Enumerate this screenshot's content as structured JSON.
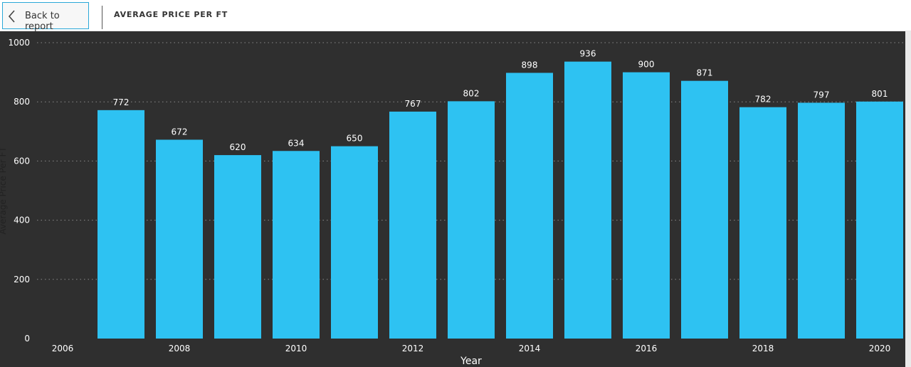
{
  "header": {
    "back_label": "Back to report",
    "page_title": "AVERAGE PRICE PER FT"
  },
  "colors": {
    "bar": "#2ec2f2",
    "background": "#2f2f2f",
    "gridline": "#8a8a8a"
  },
  "chart_data": {
    "type": "bar",
    "categories": [
      2007,
      2008,
      2009,
      2010,
      2011,
      2012,
      2013,
      2014,
      2015,
      2016,
      2017,
      2018,
      2019,
      2020
    ],
    "values": [
      772,
      672,
      620,
      634,
      650,
      767,
      802,
      898,
      936,
      900,
      871,
      782,
      797,
      801
    ],
    "x_ticks": [
      "2006",
      "2008",
      "2010",
      "2012",
      "2014",
      "2016",
      "2018",
      "2020"
    ],
    "y_ticks": [
      0,
      200,
      400,
      600,
      800,
      1000
    ],
    "xlabel": "Year",
    "ylabel": "Average Price Per FT",
    "ylim": [
      0,
      1000
    ],
    "xlim": [
      2006,
      2020
    ],
    "grid": true,
    "data_labels": true
  }
}
